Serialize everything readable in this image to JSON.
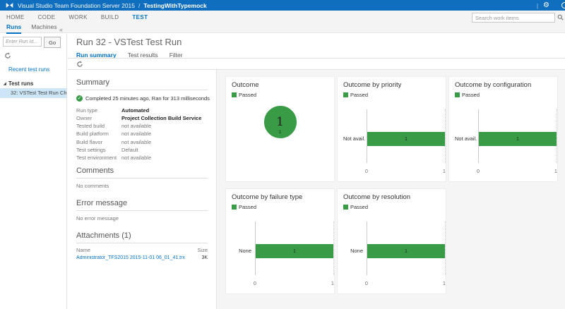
{
  "colors": {
    "header_bg": "#106EBE",
    "accent": "#0072C6",
    "passed_green": "#3A9B47",
    "selected_bg": "#CDE6F7"
  },
  "topbar": {
    "product": "Visual Studio Team Foundation Server 2015",
    "separator": "/",
    "project": "TestingWithTypemock",
    "pipe": "|"
  },
  "nav": {
    "items": [
      "HOME",
      "CODE",
      "WORK",
      "BUILD",
      "TEST"
    ],
    "active": "TEST"
  },
  "subnav": {
    "tabs": [
      "Runs",
      "Machines"
    ],
    "active": "Runs"
  },
  "search": {
    "placeholder": "Search work items"
  },
  "sidebar": {
    "collapse_glyph": "«",
    "run_id_placeholder": "Enter Run Id...",
    "go_label": "Go",
    "recent_link": "Recent test runs",
    "tree_root": "Test runs",
    "selected_item": "32: VSTest Test Run Ch..."
  },
  "main": {
    "title": "Run 32 - VSTest Test Run",
    "tabs": [
      {
        "label": "Run summary",
        "active": true
      },
      {
        "label": "Test results",
        "active": false
      },
      {
        "label": "Filter",
        "active": false
      }
    ]
  },
  "summary": {
    "heading": "Summary",
    "status": "Completed 25 minutes ago, Ran for 313 milliseconds",
    "fields": [
      {
        "label": "Run type",
        "value": "Automated",
        "strong": true
      },
      {
        "label": "Owner",
        "value": "Project Collection Build Service",
        "strong": true
      },
      {
        "label": "Tested build",
        "value": "not available",
        "strong": false
      },
      {
        "label": "Build platform",
        "value": "not available",
        "strong": false
      },
      {
        "label": "Build flavor",
        "value": "not available",
        "strong": false
      },
      {
        "label": "Test settings",
        "value": "Default",
        "strong": false
      },
      {
        "label": "Test environment",
        "value": "not available",
        "strong": false
      }
    ]
  },
  "comments": {
    "heading": "Comments",
    "body": "No comments"
  },
  "error": {
    "heading": "Error message",
    "body": "No error message"
  },
  "attachments": {
    "heading": "Attachments (1)",
    "columns": {
      "name": "Name",
      "size": "Size"
    },
    "rows": [
      {
        "name": "Administrator_TFS2015 2015-11-01 06_01_41.trx",
        "size": "3K"
      }
    ]
  },
  "chart_data": [
    {
      "type": "donut",
      "title": "Outcome",
      "legend_position": "top-left",
      "series": [
        {
          "name": "Passed",
          "value": 1,
          "color": "#3A9B47"
        }
      ],
      "center_label": "1",
      "total": 1
    },
    {
      "type": "bar",
      "title": "Outcome by priority",
      "orientation": "horizontal",
      "series_name": "Passed",
      "color": "#3A9B47",
      "categories": [
        "Not avail..."
      ],
      "values": [
        1
      ],
      "xlim": [
        0,
        1
      ],
      "grid": "dotted-at-max"
    },
    {
      "type": "bar",
      "title": "Outcome by configuration",
      "orientation": "horizontal",
      "series_name": "Passed",
      "color": "#3A9B47",
      "categories": [
        "Not avail..."
      ],
      "values": [
        1
      ],
      "xlim": [
        0,
        1
      ],
      "grid": "dotted-at-max"
    },
    {
      "type": "bar",
      "title": "Outcome by failure type",
      "orientation": "horizontal",
      "series_name": "Passed",
      "color": "#3A9B47",
      "categories": [
        "None"
      ],
      "values": [
        1
      ],
      "xlim": [
        0,
        1
      ],
      "grid": "dotted-at-max"
    },
    {
      "type": "bar",
      "title": "Outcome by resolution",
      "orientation": "horizontal",
      "series_name": "Passed",
      "color": "#3A9B47",
      "categories": [
        "None"
      ],
      "values": [
        1
      ],
      "xlim": [
        0,
        1
      ],
      "grid": "dotted-at-max"
    }
  ]
}
